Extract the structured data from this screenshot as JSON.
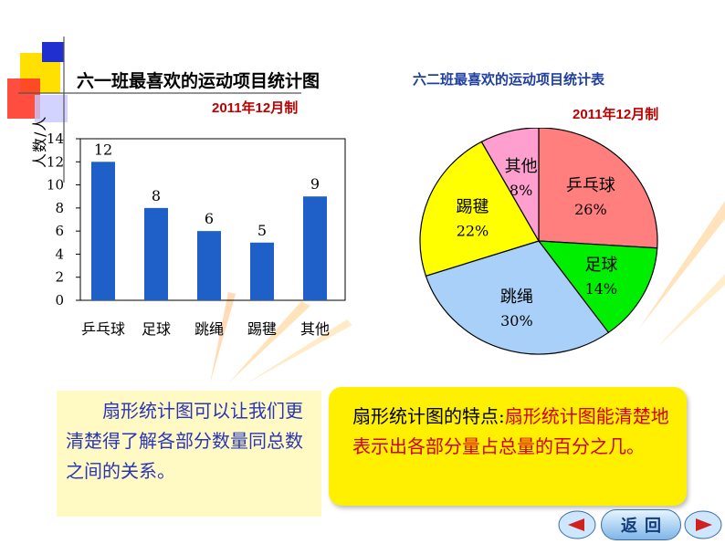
{
  "bar_chart": {
    "title": "六一班最喜欢的运动项目统计图",
    "date": "2011年12月制",
    "ylabel": "人数/人"
  },
  "pie_chart": {
    "title": "六二班最喜欢的运动项目统计表",
    "date": "2011年12月制"
  },
  "notes": {
    "left": "　　扇形统计图可以让我们更清楚得了解各部分数量同总数之间的关系。",
    "right_prefix": "扇形统计图的特点:",
    "right_body": "扇形统计图能清楚地表示出各部分量占总量的百分之几。"
  },
  "nav": {
    "back_label": "返回"
  },
  "chart_data": [
    {
      "type": "bar",
      "title": "六一班最喜欢的运动项目统计图",
      "ylabel": "人数/人",
      "categories": [
        "乒乓球",
        "足球",
        "跳绳",
        "踢毽",
        "其他"
      ],
      "values": [
        12,
        8,
        6,
        5,
        9
      ],
      "yticks": [
        "0",
        "2",
        "4",
        "6",
        "8",
        "10",
        "12",
        "14"
      ],
      "ylim": [
        0,
        14
      ],
      "bar_color": "#1f5fc8",
      "grid": false
    },
    {
      "type": "pie",
      "title": "六二班最喜欢的运动项目统计表",
      "slices": [
        {
          "label": "乒乓球",
          "percent": 26,
          "percent_label": "26%",
          "color": "#ff7f7f"
        },
        {
          "label": "足球",
          "percent": 14,
          "percent_label": "14%",
          "color": "#00ee00"
        },
        {
          "label": "跳绳",
          "percent": 30,
          "percent_label": "30%",
          "color": "#a8d0f8"
        },
        {
          "label": "踢毽",
          "percent": 22,
          "percent_label": "22%",
          "color": "#ffff00"
        },
        {
          "label": "其他",
          "percent": 8,
          "percent_label": "8%",
          "color": "#ff9fd0"
        }
      ]
    }
  ]
}
